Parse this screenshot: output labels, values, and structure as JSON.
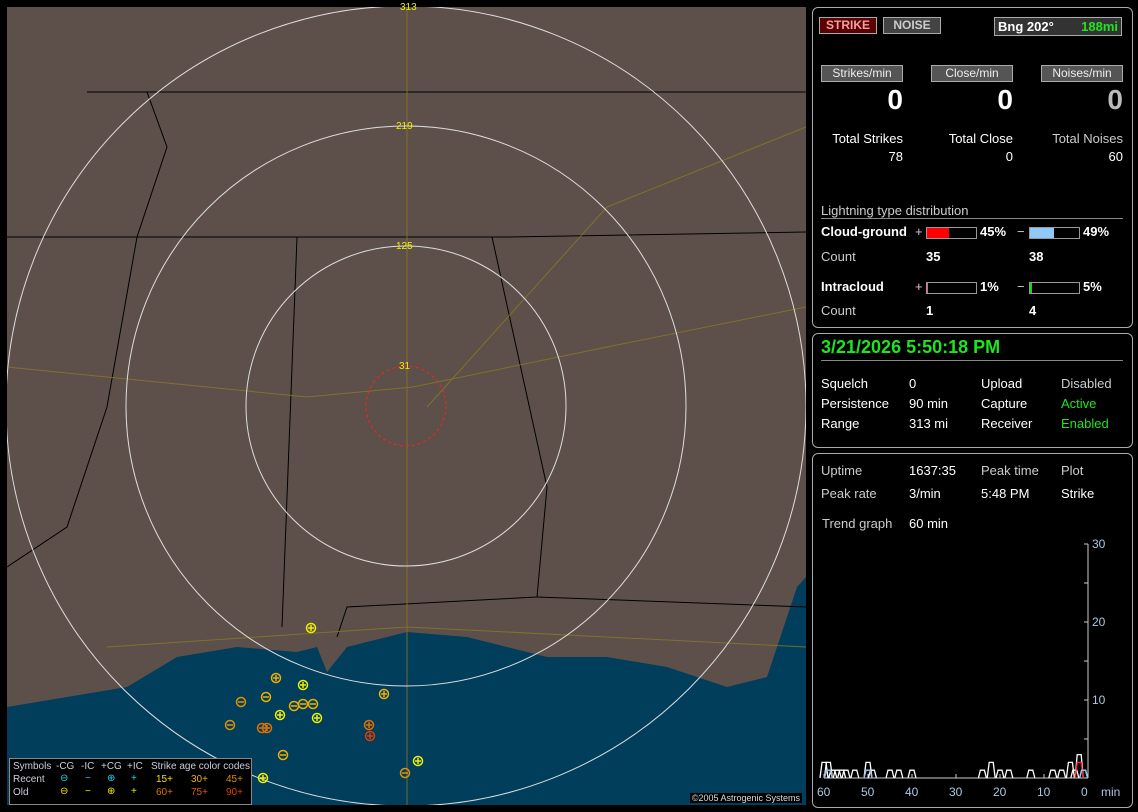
{
  "map": {
    "ring_labels": [
      "31",
      "125",
      "219",
      "313"
    ],
    "legend": {
      "headers": [
        "Symbols",
        "-CG",
        "-IC",
        "+CG",
        "+IC",
        "Strike age color codes"
      ],
      "recent_label": "Recent",
      "old_label": "Old",
      "recent_symbols": [
        "⊖",
        "−",
        "⊕",
        "+"
      ],
      "old_symbols": [
        "⊖",
        "−",
        "⊕",
        "+"
      ],
      "age_codes_recent": [
        "15+",
        "30+",
        "45+"
      ],
      "age_codes_old": [
        "60+",
        "75+",
        "90+"
      ],
      "colors": {
        "recent": "#22d8f0",
        "old": "#f0f000",
        "15": "#f0e000",
        "30": "#f0b000",
        "45": "#e09000",
        "60": "#e07000",
        "75": "#e05a00",
        "90": "#e03c00"
      }
    },
    "copyright": "©2005 Astrogenic Systems"
  },
  "top": {
    "strike_button": "STRIKE",
    "noise_button": "NOISE",
    "bearing": "Bng 202°",
    "distance": "188mi",
    "rates": [
      {
        "label": "Strikes/min",
        "value": "0",
        "total_label": "Total Strikes",
        "total": "78"
      },
      {
        "label": "Close/min",
        "value": "0",
        "total_label": "Total Close",
        "total": "0"
      },
      {
        "label": "Noises/min",
        "value": "0",
        "total_label": "Total Noises",
        "total": "60"
      }
    ],
    "distribution": {
      "title": "Lightning type distribution",
      "cg_label": "Cloud-ground",
      "ic_label": "Intracloud",
      "count_label": "Count",
      "plus": "+",
      "minus": "−",
      "cg_pos": {
        "pct": "45%",
        "value": 45,
        "count": "35",
        "color": "#ff0000"
      },
      "cg_neg": {
        "pct": "49%",
        "value": 49,
        "count": "38",
        "color": "#90c8f8"
      },
      "ic_pos": {
        "pct": "1%",
        "value": 1,
        "count": "1",
        "color": "#e060a0"
      },
      "ic_neg": {
        "pct": "5%",
        "value": 5,
        "count": "4",
        "color": "#20d020"
      }
    }
  },
  "status": {
    "datetime": "3/21/2026 5:50:18 PM",
    "rows": [
      {
        "k1": "Squelch",
        "v1": "0",
        "k2": "Upload",
        "v2": "Disabled"
      },
      {
        "k1": "Persistence",
        "v1": "90 min",
        "k2": "Capture",
        "v2": "Active"
      },
      {
        "k1": "Range",
        "v1": "313 mi",
        "k2": "Receiver",
        "v2": "Enabled"
      }
    ]
  },
  "stats": {
    "uptime_label": "Uptime",
    "uptime": "1637:35",
    "peak_time_label": "Peak time",
    "plot_label": "Plot",
    "peak_rate_label": "Peak rate",
    "peak_rate": "3/min",
    "peak_time": "5:48 PM",
    "plot": "Strike",
    "trend_label": "Trend graph",
    "trend": "60 min"
  },
  "chart_data": {
    "type": "line",
    "xlabel": "min",
    "x_ticks": [
      "60",
      "50",
      "40",
      "30",
      "20",
      "10",
      "0"
    ],
    "y_ticks": [
      "10",
      "20",
      "30"
    ],
    "xlim": [
      60,
      0
    ],
    "ylim": [
      0,
      30
    ],
    "series": [
      {
        "color": "#ffffff",
        "points": [
          [
            60,
            2
          ],
          [
            59,
            1
          ],
          [
            59,
            2
          ],
          [
            58,
            1
          ],
          [
            57,
            1
          ],
          [
            56,
            1
          ],
          [
            55,
            1
          ],
          [
            53,
            1
          ],
          [
            50,
            2
          ],
          [
            49,
            1
          ],
          [
            45,
            1
          ],
          [
            43,
            1
          ],
          [
            40,
            1
          ],
          [
            24,
            1
          ],
          [
            22,
            2
          ],
          [
            20,
            1
          ],
          [
            18,
            1
          ],
          [
            13,
            1
          ],
          [
            8,
            1
          ],
          [
            6,
            1
          ],
          [
            4,
            2
          ],
          [
            3,
            1
          ],
          [
            2,
            3
          ],
          [
            1,
            1
          ]
        ]
      },
      {
        "color": "#ff2020",
        "points": [
          [
            59,
            1
          ],
          [
            50,
            1
          ],
          [
            2,
            2
          ]
        ]
      },
      {
        "color": "#90c8f8",
        "points": [
          [
            59,
            1
          ],
          [
            50,
            1
          ],
          [
            1,
            1
          ]
        ]
      }
    ]
  }
}
